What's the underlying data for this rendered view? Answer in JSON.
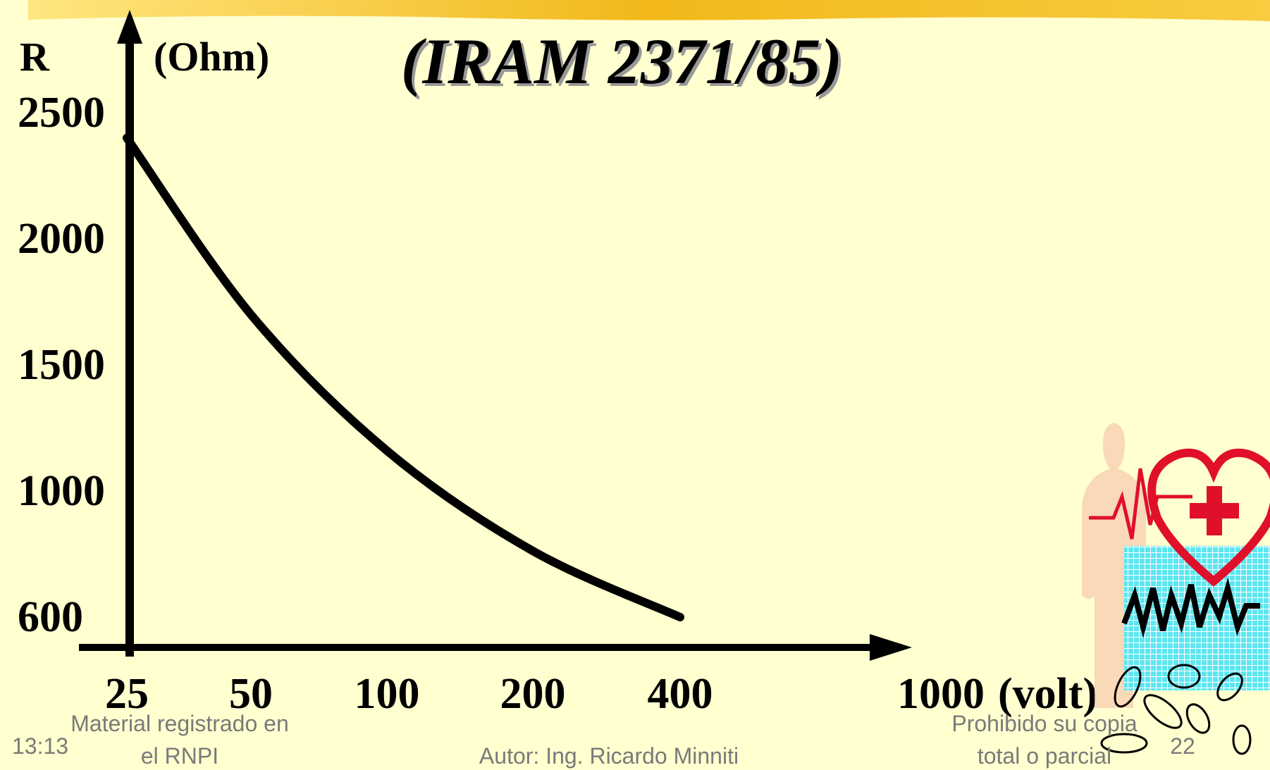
{
  "chart_data": {
    "type": "line",
    "title": "(IRAM 2371/85)",
    "y_label": "R",
    "y_unit": "(Ohm)",
    "x_unit": "(volt)",
    "categories": [
      "25",
      "50",
      "100",
      "200",
      "400",
      "1000"
    ],
    "series": [
      {
        "name": "R",
        "color": "#000000",
        "values": [
          2400,
          1700,
          1160,
          810,
          600,
          null
        ]
      }
    ],
    "yticks": [
      600,
      1000,
      1500,
      2000,
      2500
    ]
  },
  "footer": {
    "time": "13:13",
    "left": [
      "Material registrado en",
      "el RNPI"
    ],
    "center": "Autor: Ing. Ricardo Minniti",
    "right": [
      "Prohibido su copia",
      "total o parcial"
    ],
    "page": "22"
  }
}
